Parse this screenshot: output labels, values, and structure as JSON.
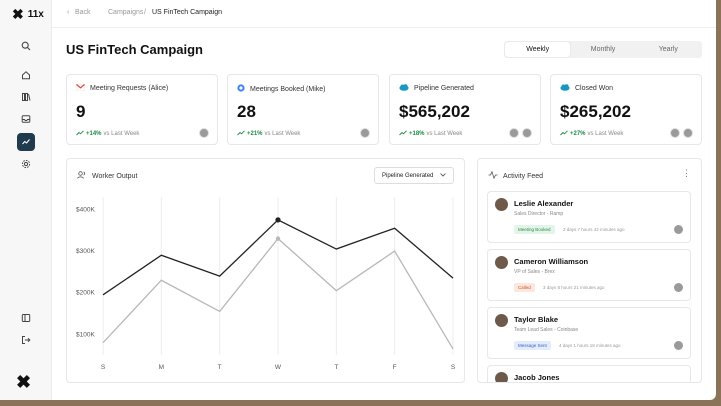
{
  "brand": {
    "name": "11x"
  },
  "breadcrumb": {
    "back": "Back",
    "parent": "Campaigns",
    "separator": "/",
    "current": "US FinTech Campaign"
  },
  "page": {
    "title": "US FinTech Campaign"
  },
  "tabs": [
    {
      "label": "Weekly",
      "active": true
    },
    {
      "label": "Monthly",
      "active": false
    },
    {
      "label": "Yearly",
      "active": false
    }
  ],
  "cards": [
    {
      "label": "Meeting Requests (Alice)",
      "value": "9",
      "delta": "+14%",
      "delta_suffix": "vs Last Week",
      "icon": "gmail-icon"
    },
    {
      "label": "Meetings Booked (Mike)",
      "value": "28",
      "delta": "+21%",
      "delta_suffix": "vs Last Week",
      "icon": "calendar-dot-icon"
    },
    {
      "label": "Pipeline Generated",
      "value": "$565,202",
      "delta": "+18%",
      "delta_suffix": "vs Last Week",
      "icon": "salesforce-icon"
    },
    {
      "label": "Closed Won",
      "value": "$265,202",
      "delta": "+27%",
      "delta_suffix": "vs Last Week",
      "icon": "salesforce-icon"
    }
  ],
  "worker_output": {
    "title": "Worker Output",
    "select_value": "Pipeline Generated"
  },
  "chart_data": {
    "type": "line",
    "categories": [
      "S",
      "M",
      "T",
      "W",
      "T",
      "F",
      "S"
    ],
    "y_ticks": [
      "$400K",
      "$300K",
      "$200K",
      "$100K"
    ],
    "ylim": [
      60000,
      430000
    ],
    "grid": true,
    "series": [
      {
        "values": [
          195000,
          290000,
          240000,
          375000,
          305000,
          355000,
          235000
        ],
        "color": "#222222"
      },
      {
        "values": [
          80000,
          230000,
          155000,
          330000,
          205000,
          300000,
          65000
        ],
        "color": "#b8b8b8"
      }
    ]
  },
  "activity": {
    "title": "Activity Feed",
    "items": [
      {
        "name": "Leslie Alexander",
        "role": "Sales Director - Ramp",
        "badge": "Meeting Booked",
        "badge_bg": "#e3f5e8",
        "badge_fg": "#2f8a4a",
        "time": "2 days 7 hours 42 minutes ago"
      },
      {
        "name": "Cameron Williamson",
        "role": "VP of Sales - Brex",
        "badge": "Called",
        "badge_bg": "#fde7df",
        "badge_fg": "#c4552a",
        "time": "3 days 8 hours 21 minutes ago"
      },
      {
        "name": "Taylor Blake",
        "role": "Team Lead Sales - Coinbase",
        "badge": "Message Sent",
        "badge_bg": "#e3ecfb",
        "badge_fg": "#3a63c4",
        "time": "4 days 1 hours 18 minutes ago"
      },
      {
        "name": "Jacob Jones",
        "role": "",
        "badge": "",
        "time": ""
      }
    ]
  }
}
